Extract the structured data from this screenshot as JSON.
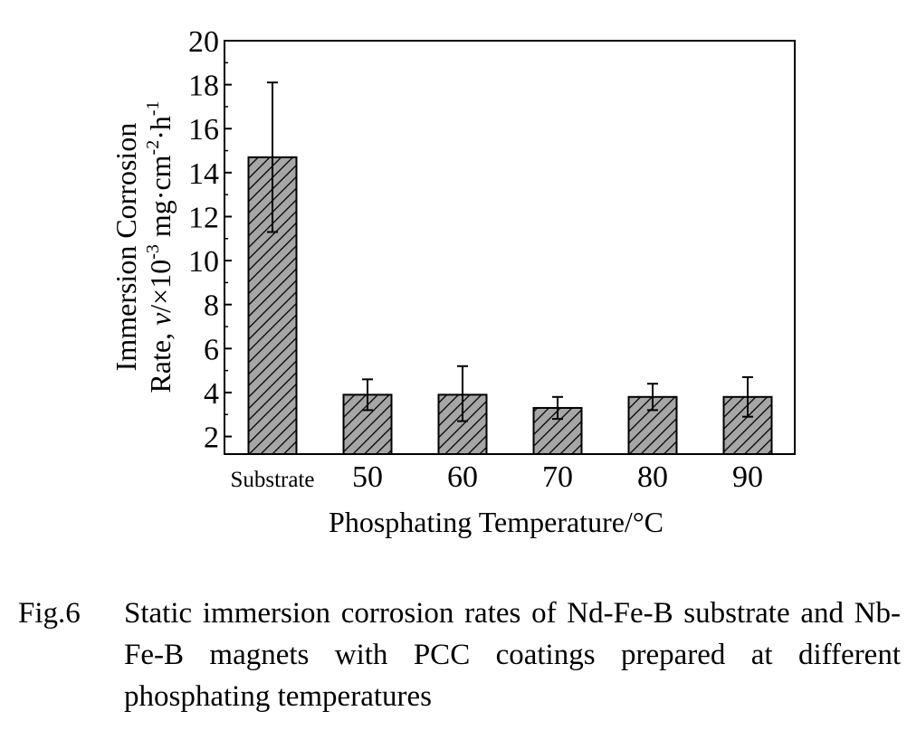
{
  "chart_data": {
    "type": "bar",
    "categories": [
      "Substrate",
      "50",
      "60",
      "70",
      "80",
      "90"
    ],
    "values": [
      14.7,
      3.9,
      3.9,
      3.3,
      3.8,
      3.8
    ],
    "error_bars": [
      [
        11.3,
        18.1
      ],
      [
        3.2,
        4.6
      ],
      [
        2.7,
        5.2
      ],
      [
        2.8,
        3.8
      ],
      [
        3.2,
        4.4
      ],
      [
        2.9,
        4.7
      ]
    ],
    "xlabel": "Phosphating Temperature/°C",
    "ylabel_line1": "Immersion Corrosion",
    "ylabel_line2_prefix": "Rate, ",
    "ylabel_var": "v",
    "ylabel_unit_a": "/×10",
    "ylabel_exp_a": "-3",
    "ylabel_unit_b": " mg·cm",
    "ylabel_exp_b": "-2",
    "ylabel_unit_c": "·h",
    "ylabel_exp_c": "-1",
    "ylim": [
      1.2,
      20
    ],
    "yticks": [
      2,
      4,
      6,
      8,
      10,
      12,
      14,
      16,
      18,
      20
    ],
    "bar_fill": "#a6a6a6",
    "bar_pattern": "diagonal-hatch",
    "grid": false,
    "legend": "none"
  },
  "caption": {
    "label": "Fig.6",
    "text": "Static immersion corrosion rates of Nd-Fe-B substrate and Nb-Fe-B magnets with PCC coatings prepared at different phosphating temperatures"
  }
}
